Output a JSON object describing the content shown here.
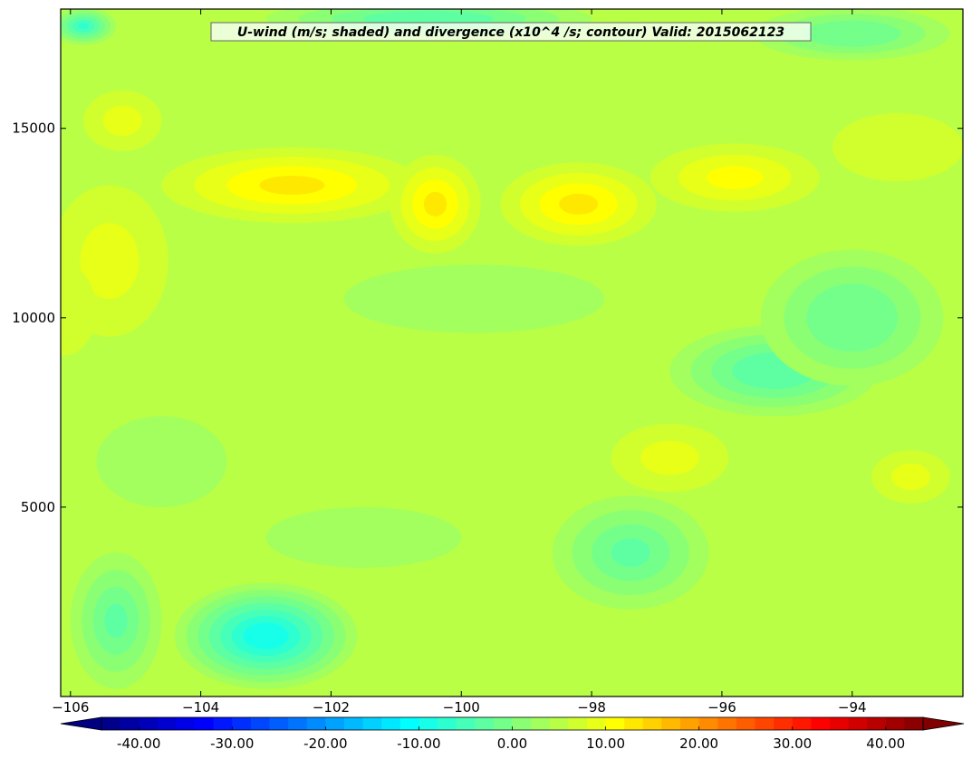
{
  "chart_data": {
    "type": "heatmap",
    "title": "U-wind (m/s; shaded) and divergence (x10^4 /s; contour) Valid: 2015062123",
    "xlabel": "",
    "ylabel": "",
    "xlim": [
      -106.15,
      -92.3
    ],
    "ylim": [
      0,
      18150
    ],
    "x_ticks": [
      -106,
      -104,
      -102,
      -100,
      -98,
      -96,
      -94
    ],
    "x_tick_labels": [
      "−106",
      "−104",
      "−102",
      "−100",
      "−98",
      "−96",
      "−94"
    ],
    "y_ticks": [
      5000,
      10000,
      15000
    ],
    "y_tick_labels": [
      "5000",
      "10000",
      "15000"
    ],
    "grid": false,
    "colorbar": {
      "orientation": "horizontal",
      "position": "bottom",
      "min": -44,
      "max": 44,
      "step": 2,
      "extend": "both",
      "ticks": [
        -40,
        -30,
        -20,
        -10,
        0,
        10,
        20,
        30,
        40
      ],
      "tick_labels": [
        "-40.00",
        "-30.00",
        "-20.00",
        "-10.00",
        "0.00",
        "10.00",
        "20.00",
        "30.00",
        "40.00"
      ]
    },
    "background_value": 5,
    "features": [
      {
        "x": -102.6,
        "y": 13500,
        "rx": 2.0,
        "ry": 1000,
        "value": 13
      },
      {
        "x": -100.4,
        "y": 13000,
        "rx": 0.7,
        "ry": 1300,
        "value": 12
      },
      {
        "x": -98.2,
        "y": 13000,
        "rx": 1.2,
        "ry": 1100,
        "value": 13
      },
      {
        "x": -96.6,
        "y": 12500,
        "rx": 0.3,
        "ry": 900,
        "value": 5
      },
      {
        "x": -95.8,
        "y": 13700,
        "rx": 1.3,
        "ry": 900,
        "value": 10
      },
      {
        "x": -93.3,
        "y": 14500,
        "rx": 1.0,
        "ry": 900,
        "value": 6
      },
      {
        "x": -105.2,
        "y": 15200,
        "rx": 0.6,
        "ry": 800,
        "value": 9
      },
      {
        "x": -105.4,
        "y": 11500,
        "rx": 0.9,
        "ry": 2000,
        "value": 9
      },
      {
        "x": -106.1,
        "y": 10200,
        "rx": 0.5,
        "ry": 1200,
        "value": 7
      },
      {
        "x": -103.0,
        "y": 8800,
        "rx": 0.4,
        "ry": 1000,
        "value": 5
      },
      {
        "x": -99.5,
        "y": 8500,
        "rx": 1.5,
        "ry": 700,
        "value": 5
      },
      {
        "x": -96.8,
        "y": 6300,
        "rx": 0.9,
        "ry": 900,
        "value": 8
      },
      {
        "x": -93.1,
        "y": 5800,
        "rx": 0.6,
        "ry": 700,
        "value": 9
      },
      {
        "x": -93.5,
        "y": 4400,
        "rx": 0.5,
        "ry": 300,
        "value": 5
      },
      {
        "x": -99.0,
        "y": 2800,
        "rx": 0.8,
        "ry": 600,
        "value": 4
      },
      {
        "x": -103.0,
        "y": 1600,
        "rx": 1.4,
        "ry": 1400,
        "value": -10
      },
      {
        "x": -105.3,
        "y": 2000,
        "rx": 0.7,
        "ry": 1800,
        "value": -3
      },
      {
        "x": -105.8,
        "y": 17700,
        "rx": 0.5,
        "ry": 500,
        "value": -7
      },
      {
        "x": -100.5,
        "y": 17900,
        "rx": 2.5,
        "ry": 500,
        "value": -4
      },
      {
        "x": -94.0,
        "y": 17500,
        "rx": 1.5,
        "ry": 700,
        "value": -2
      },
      {
        "x": -95.2,
        "y": 8600,
        "rx": 1.6,
        "ry": 1200,
        "value": -4
      },
      {
        "x": -97.4,
        "y": 3800,
        "rx": 1.2,
        "ry": 1500,
        "value": -3
      },
      {
        "x": -101.5,
        "y": 4200,
        "rx": 1.5,
        "ry": 800,
        "value": 3
      },
      {
        "x": -104.6,
        "y": 6200,
        "rx": 1.0,
        "ry": 1200,
        "value": 3
      },
      {
        "x": -99.8,
        "y": 10500,
        "rx": 2.0,
        "ry": 900,
        "value": 2
      },
      {
        "x": -94.0,
        "y": 10000,
        "rx": 1.4,
        "ry": 1800,
        "value": -2
      }
    ]
  }
}
